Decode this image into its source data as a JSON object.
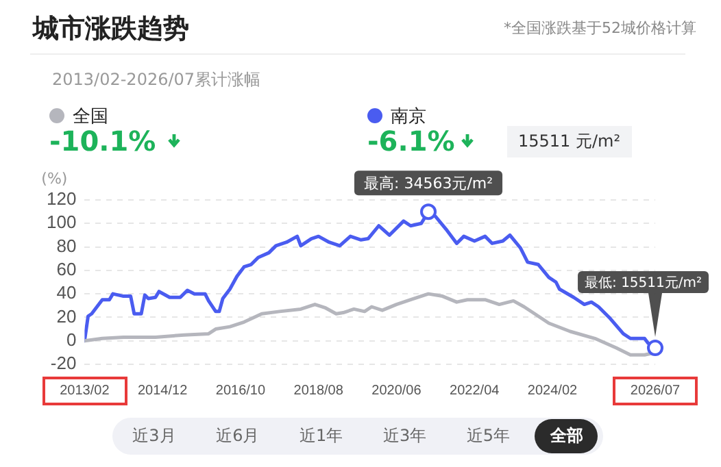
{
  "chart_data": {
    "type": "line",
    "title": "城市涨跌趋势",
    "subtitle": "*全国涨跌基于52城价格计算",
    "ylabel": "(%)",
    "xlim": [
      "2013-02",
      "2026-07"
    ],
    "xticks": [
      {
        "value": "2013-02",
        "label": "2013/02"
      },
      {
        "value": "2014-12",
        "label": "2014/12"
      },
      {
        "value": "2016-10",
        "label": "2016/10"
      },
      {
        "value": "2018-08",
        "label": "2018/08"
      },
      {
        "value": "2020-06",
        "label": "2020/06"
      },
      {
        "value": "2022-04",
        "label": "2022/04"
      },
      {
        "value": "2024-02",
        "label": "2024/02"
      },
      {
        "value": "2026-07",
        "label": "2026/07"
      }
    ],
    "ylim": [
      -20,
      120
    ],
    "yticks": [
      -20,
      0,
      20,
      40,
      60,
      80,
      100,
      120
    ],
    "grid": "y",
    "legend": "top left",
    "marker": "none",
    "line_style": "solid",
    "series": [
      {
        "name": "全国",
        "color": "#b5b6bd",
        "x": [
          "2013-02",
          "2013-07",
          "2014-01",
          "2014-10",
          "2015-06",
          "2016-01",
          "2016-03",
          "2016-07",
          "2016-11",
          "2017-04",
          "2017-09",
          "2018-03",
          "2018-07",
          "2018-10",
          "2019-01",
          "2019-03",
          "2019-06",
          "2019-09",
          "2019-11",
          "2020-02",
          "2020-06",
          "2020-10",
          "2021-03",
          "2021-07",
          "2021-11",
          "2022-02",
          "2022-07",
          "2022-11",
          "2023-03",
          "2023-06",
          "2023-09",
          "2024-01",
          "2024-07",
          "2025-02",
          "2025-08",
          "2025-12",
          "2026-04",
          "2026-07"
        ],
        "values": [
          0,
          2,
          3,
          3,
          5,
          6,
          10,
          12,
          16,
          23,
          25,
          27,
          31,
          28,
          23,
          24,
          27,
          25,
          29,
          26,
          31,
          35,
          40,
          38,
          33,
          35,
          35,
          31,
          34,
          29,
          23,
          15,
          8,
          2,
          -6,
          -12,
          -12,
          -10
        ]
      },
      {
        "name": "南京",
        "color": "#4a5cf0",
        "x": [
          "2013-02",
          "2013-03",
          "2013-04",
          "2013-07",
          "2013-09",
          "2013-10",
          "2014-01",
          "2014-03",
          "2014-04",
          "2014-06",
          "2014-07",
          "2014-08",
          "2014-10",
          "2014-11",
          "2015-02",
          "2015-05",
          "2015-07",
          "2015-09",
          "2015-12",
          "2016-01",
          "2016-03",
          "2016-04",
          "2016-05",
          "2016-07",
          "2016-09",
          "2016-11",
          "2017-01",
          "2017-03",
          "2017-06",
          "2017-08",
          "2017-11",
          "2018-02",
          "2018-03",
          "2018-06",
          "2018-08",
          "2018-11",
          "2019-02",
          "2019-05",
          "2019-08",
          "2019-10",
          "2020-01",
          "2020-04",
          "2020-08",
          "2020-10",
          "2021-01",
          "2021-03",
          "2021-05",
          "2021-08",
          "2021-11",
          "2022-01",
          "2022-04",
          "2022-07",
          "2022-09",
          "2022-12",
          "2023-02",
          "2023-05",
          "2023-07",
          "2023-10",
          "2024-01",
          "2024-03",
          "2024-04",
          "2024-08",
          "2024-11",
          "2025-01",
          "2025-03",
          "2025-06",
          "2025-10",
          "2025-12",
          "2026-04",
          "2026-05",
          "2026-07"
        ],
        "values": [
          0,
          21,
          23,
          35,
          35,
          40,
          38,
          38,
          23,
          23,
          39,
          36,
          37,
          42,
          37,
          37,
          43,
          40,
          40,
          34,
          25,
          25,
          36,
          44,
          55,
          63,
          65,
          71,
          75,
          81,
          84,
          89,
          81,
          87,
          89,
          84,
          81,
          89,
          86,
          87,
          98,
          90,
          102,
          98,
          100,
          110,
          106,
          95,
          83,
          89,
          85,
          89,
          83,
          85,
          90,
          79,
          67,
          65,
          54,
          50,
          44,
          37,
          31,
          33,
          29,
          20,
          6,
          2,
          2,
          -2,
          -6
        ]
      }
    ],
    "annotations": [
      "2013/02-2026/07累计涨幅",
      "-10.1%",
      "-6.1%",
      "15511 元/m²",
      "近3月",
      "近6月",
      "近1年",
      "近3年",
      "近5年",
      "全部",
      {
        "text": "最高: 34563元/m²",
        "x": "2021-03",
        "y": 110
      },
      {
        "text": "最低: 15511元/m²",
        "x": "2026-07",
        "y": -6
      }
    ]
  }
}
